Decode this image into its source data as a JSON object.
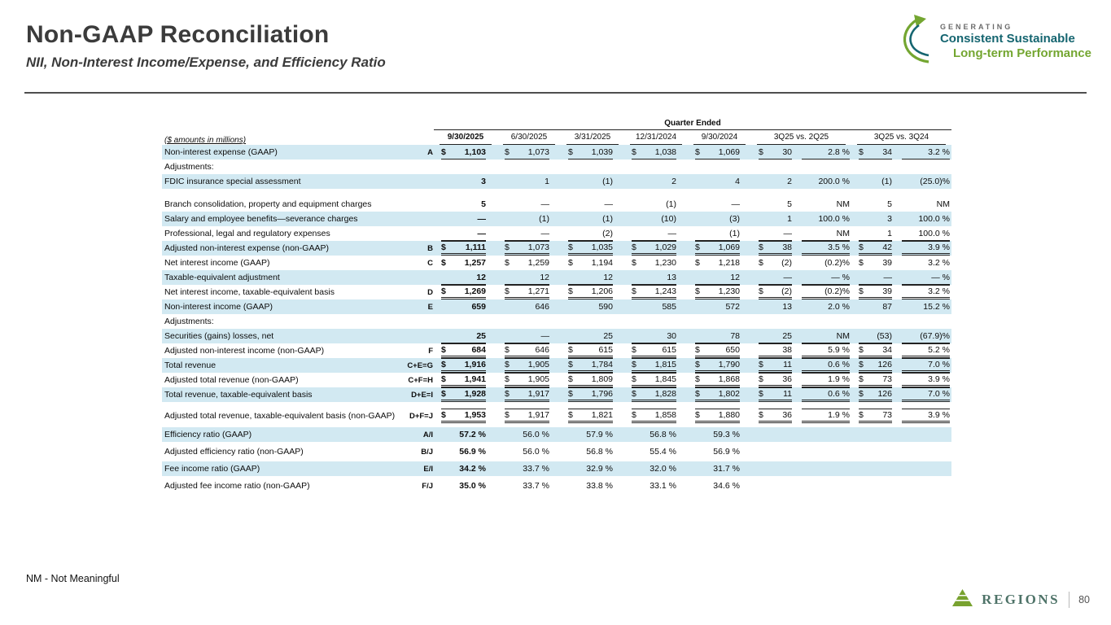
{
  "slide": {
    "title": "Non-GAAP Reconciliation",
    "subtitle": "NII, Non-Interest Income/Expense, and Efficiency Ratio",
    "footnote": "NM - Not Meaningful"
  },
  "brand": {
    "generating": "GENERATING",
    "tagline1": "Consistent Sustainable",
    "tagline2": "Long-term Performance",
    "footer_name": "REGIONS",
    "page_number": "80",
    "green": "#78a22f",
    "teal": "#156570",
    "stripe_blue": "#d2e9f2"
  },
  "table": {
    "units_label": "($ amounts in millions)",
    "group_header": "Quarter Ended",
    "quarters": [
      "9/30/2025",
      "6/30/2025",
      "3/31/2025",
      "12/31/2024",
      "9/30/2024"
    ],
    "comparisons": [
      "3Q25 vs. 2Q25",
      "3Q25 vs. 3Q24"
    ],
    "rows": [
      {
        "label": "Non-interest expense (GAAP)",
        "ref": "A",
        "shade": true,
        "line": "under",
        "q": [
          {
            "d": "$",
            "v": "1,103"
          },
          {
            "d": "$",
            "v": "1,073"
          },
          {
            "d": "$",
            "v": "1,039"
          },
          {
            "d": "$",
            "v": "1,038"
          },
          {
            "d": "$",
            "v": "1,069"
          }
        ],
        "c": [
          {
            "d": "$",
            "v": "30"
          },
          {
            "v": "2.8 %"
          },
          {
            "d": "$",
            "v": "34"
          },
          {
            "v": "3.2 %"
          }
        ]
      },
      {
        "label": "Adjustments:",
        "q": [
          {},
          {},
          {},
          {},
          {}
        ],
        "c": [
          {},
          {},
          {},
          {}
        ]
      },
      {
        "label": "FDIC insurance special assessment",
        "shade": true,
        "q": [
          {
            "v": "3"
          },
          {
            "v": "1"
          },
          {
            "v": "(1)"
          },
          {
            "v": "2"
          },
          {
            "v": "4"
          }
        ],
        "c": [
          {
            "v": "2"
          },
          {
            "v": "200.0 %"
          },
          {
            "v": "(1)"
          },
          {
            "v": "(25.0)%"
          }
        ]
      },
      {
        "gap": 10
      },
      {
        "label": "Branch consolidation, property and equipment charges",
        "q": [
          {
            "v": "5"
          },
          {
            "v": "—"
          },
          {
            "v": "—"
          },
          {
            "v": "(1)"
          },
          {
            "v": "—"
          }
        ],
        "c": [
          {
            "v": "5"
          },
          {
            "v": "NM"
          },
          {
            "v": "5"
          },
          {
            "v": "NM"
          }
        ]
      },
      {
        "label": "Salary and employee benefits—severance charges",
        "shade": true,
        "q": [
          {
            "v": "—"
          },
          {
            "v": "(1)"
          },
          {
            "v": "(1)"
          },
          {
            "v": "(10)"
          },
          {
            "v": "(3)"
          }
        ],
        "c": [
          {
            "v": "1"
          },
          {
            "v": "100.0 %"
          },
          {
            "v": "3"
          },
          {
            "v": "100.0 %"
          }
        ]
      },
      {
        "label": "Professional, legal and regulatory expenses",
        "line": "under",
        "q": [
          {
            "v": "—"
          },
          {
            "v": "—"
          },
          {
            "v": "(2)"
          },
          {
            "v": "—"
          },
          {
            "v": "(1)"
          }
        ],
        "c": [
          {
            "v": "—"
          },
          {
            "v": "NM"
          },
          {
            "v": "1"
          },
          {
            "v": "100.0 %"
          }
        ]
      },
      {
        "label": "Adjusted non-interest expense (non-GAAP)",
        "ref": "B",
        "shade": true,
        "line": "total",
        "q": [
          {
            "d": "$",
            "v": "1,111"
          },
          {
            "d": "$",
            "v": "1,073"
          },
          {
            "d": "$",
            "v": "1,035"
          },
          {
            "d": "$",
            "v": "1,029"
          },
          {
            "d": "$",
            "v": "1,069"
          }
        ],
        "c": [
          {
            "d": "$",
            "v": "38"
          },
          {
            "v": "3.5 %"
          },
          {
            "d": "$",
            "v": "42"
          },
          {
            "v": "3.9 %"
          }
        ]
      },
      {
        "label": "Net interest income (GAAP)",
        "ref": "C",
        "q": [
          {
            "d": "$",
            "v": "1,257"
          },
          {
            "d": "$",
            "v": "1,259"
          },
          {
            "d": "$",
            "v": "1,194"
          },
          {
            "d": "$",
            "v": "1,230"
          },
          {
            "d": "$",
            "v": "1,218"
          }
        ],
        "c": [
          {
            "d": "$",
            "v": "(2)"
          },
          {
            "v": "(0.2)%"
          },
          {
            "d": "$",
            "v": "39"
          },
          {
            "v": "3.2 %"
          }
        ]
      },
      {
        "label": "Taxable-equivalent adjustment",
        "shade": true,
        "line": "under",
        "q": [
          {
            "v": "12"
          },
          {
            "v": "12"
          },
          {
            "v": "12"
          },
          {
            "v": "13"
          },
          {
            "v": "12"
          }
        ],
        "c": [
          {
            "v": "—"
          },
          {
            "v": "— %"
          },
          {
            "v": "—"
          },
          {
            "v": "— %"
          }
        ]
      },
      {
        "label": "Net interest income, taxable-equivalent basis",
        "ref": "D",
        "line": "total",
        "q": [
          {
            "d": "$",
            "v": "1,269"
          },
          {
            "d": "$",
            "v": "1,271"
          },
          {
            "d": "$",
            "v": "1,206"
          },
          {
            "d": "$",
            "v": "1,243"
          },
          {
            "d": "$",
            "v": "1,230"
          }
        ],
        "c": [
          {
            "d": "$",
            "v": "(2)"
          },
          {
            "v": "(0.2)%"
          },
          {
            "d": "$",
            "v": "39"
          },
          {
            "v": "3.2 %"
          }
        ]
      },
      {
        "label": "Non-interest income (GAAP)",
        "ref": "E",
        "shade": true,
        "q": [
          {
            "v": "659"
          },
          {
            "v": "646"
          },
          {
            "v": "590"
          },
          {
            "v": "585"
          },
          {
            "v": "572"
          }
        ],
        "c": [
          {
            "v": "13"
          },
          {
            "v": "2.0 %"
          },
          {
            "v": "87"
          },
          {
            "v": "15.2 %"
          }
        ]
      },
      {
        "label": "Adjustments:",
        "q": [
          {},
          {},
          {},
          {},
          {}
        ],
        "c": [
          {},
          {},
          {},
          {}
        ]
      },
      {
        "label": "Securities (gains) losses, net",
        "shade": true,
        "line": "under",
        "q": [
          {
            "v": "25"
          },
          {
            "v": "—"
          },
          {
            "v": "25"
          },
          {
            "v": "30"
          },
          {
            "v": "78"
          }
        ],
        "c": [
          {
            "v": "25"
          },
          {
            "v": "NM"
          },
          {
            "v": "(53)"
          },
          {
            "v": "(67.9)%"
          }
        ]
      },
      {
        "label": "Adjusted non-interest income (non-GAAP)",
        "ref": "F",
        "line": "total",
        "q": [
          {
            "d": "$",
            "v": "684"
          },
          {
            "d": "$",
            "v": "646"
          },
          {
            "d": "$",
            "v": "615"
          },
          {
            "d": "$",
            "v": "615"
          },
          {
            "d": "$",
            "v": "650"
          }
        ],
        "c": [
          {
            "v": "38"
          },
          {
            "v": "5.9 %"
          },
          {
            "d": "$",
            "v": "34"
          },
          {
            "v": "5.2 %"
          }
        ]
      },
      {
        "label": "Total revenue",
        "ref": "C+E=G",
        "shade": true,
        "line": "total",
        "q": [
          {
            "d": "$",
            "v": "1,916"
          },
          {
            "d": "$",
            "v": "1,905"
          },
          {
            "d": "$",
            "v": "1,784"
          },
          {
            "d": "$",
            "v": "1,815"
          },
          {
            "d": "$",
            "v": "1,790"
          }
        ],
        "c": [
          {
            "d": "$",
            "v": "11"
          },
          {
            "v": "0.6 %"
          },
          {
            "d": "$",
            "v": "126"
          },
          {
            "v": "7.0 %"
          }
        ]
      },
      {
        "label": "Adjusted total revenue (non-GAAP)",
        "ref": "C+F=H",
        "line": "total",
        "q": [
          {
            "d": "$",
            "v": "1,941"
          },
          {
            "d": "$",
            "v": "1,905"
          },
          {
            "d": "$",
            "v": "1,809"
          },
          {
            "d": "$",
            "v": "1,845"
          },
          {
            "d": "$",
            "v": "1,868"
          }
        ],
        "c": [
          {
            "d": "$",
            "v": "36"
          },
          {
            "v": "1.9 %"
          },
          {
            "d": "$",
            "v": "73"
          },
          {
            "v": "3.9 %"
          }
        ]
      },
      {
        "label": "Total revenue, taxable-equivalent basis",
        "ref": "D+E=I",
        "shade": true,
        "line": "total",
        "q": [
          {
            "d": "$",
            "v": "1,928"
          },
          {
            "d": "$",
            "v": "1,917"
          },
          {
            "d": "$",
            "v": "1,796"
          },
          {
            "d": "$",
            "v": "1,828"
          },
          {
            "d": "$",
            "v": "1,802"
          }
        ],
        "c": [
          {
            "d": "$",
            "v": "11"
          },
          {
            "v": "0.6 %"
          },
          {
            "d": "$",
            "v": "126"
          },
          {
            "v": "7.0 %"
          }
        ]
      },
      {
        "gap": 8
      },
      {
        "label": "Adjusted total revenue, taxable-equivalent basis (non-GAAP)",
        "ref": "D+F=J",
        "line": "total",
        "q": [
          {
            "d": "$",
            "v": "1,953"
          },
          {
            "d": "$",
            "v": "1,917"
          },
          {
            "d": "$",
            "v": "1,821"
          },
          {
            "d": "$",
            "v": "1,858"
          },
          {
            "d": "$",
            "v": "1,880"
          }
        ],
        "c": [
          {
            "d": "$",
            "v": "36"
          },
          {
            "v": "1.9 %"
          },
          {
            "d": "$",
            "v": "73"
          },
          {
            "v": "3.9 %"
          }
        ]
      },
      {
        "gap": 5
      },
      {
        "label": "Efficiency ratio (GAAP)",
        "ref": "A/I",
        "shade": true,
        "q": [
          {
            "v": "57.2 %"
          },
          {
            "v": "56.0 %"
          },
          {
            "v": "57.9 %"
          },
          {
            "v": "56.8 %"
          },
          {
            "v": "59.3 %"
          }
        ],
        "c": [
          {},
          {},
          {},
          {}
        ]
      },
      {
        "gap": 3
      },
      {
        "label": "Adjusted efficiency ratio (non-GAAP)",
        "ref": "B/J",
        "q": [
          {
            "v": "56.9 %"
          },
          {
            "v": "56.0 %"
          },
          {
            "v": "56.8 %"
          },
          {
            "v": "55.4 %"
          },
          {
            "v": "56.9 %"
          }
        ],
        "c": [
          {},
          {},
          {},
          {}
        ]
      },
      {
        "gap": 3
      },
      {
        "label": "Fee income ratio (GAAP)",
        "ref": "E/I",
        "shade": true,
        "q": [
          {
            "v": "34.2 %"
          },
          {
            "v": "33.7 %"
          },
          {
            "v": "32.9 %"
          },
          {
            "v": "32.0 %"
          },
          {
            "v": "31.7 %"
          }
        ],
        "c": [
          {},
          {},
          {},
          {}
        ]
      },
      {
        "gap": 3
      },
      {
        "label": "Adjusted fee income ratio (non-GAAP)",
        "ref": "F/J",
        "q": [
          {
            "v": "35.0 %"
          },
          {
            "v": "33.7 %"
          },
          {
            "v": "33.8 %"
          },
          {
            "v": "33.1 %"
          },
          {
            "v": "34.6 %"
          }
        ],
        "c": [
          {},
          {},
          {},
          {}
        ]
      }
    ]
  }
}
